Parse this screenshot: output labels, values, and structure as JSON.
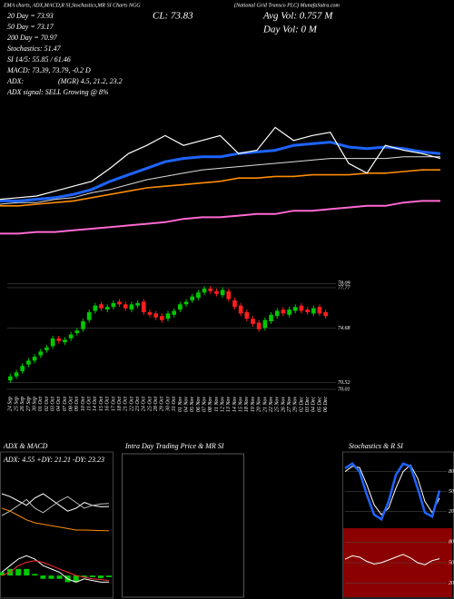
{
  "header": {
    "title": "EMA charts, ADX,MACD,R SI,Stochastics,MR SI Charts NGG",
    "company": "(National Grid Transco PLC) MunafaSutra.com",
    "close": "CL: 73.83",
    "avg_vol": "Avg Vol: 0.757 M",
    "day_vol": "Day Vol: 0 M"
  },
  "stats": [
    "20 Day = 73.93",
    "50 Day = 73.17",
    "200 Day = 70.97",
    "Stochastics: 51.47",
    "SI 14/5: 55.85 / 61.46",
    "MACD: 73.39, 73.79, -0.2 D",
    "ADX:",
    "(MGR) 4.5, 21.2, 23.2",
    "ADX  signal: SELL Growing @ 8%"
  ],
  "chart_data": [
    {
      "type": "line",
      "ylim": [
        68,
        83
      ],
      "series": [
        {
          "color": "#ff69d2",
          "width": 2,
          "values": [
            68.7,
            68.7,
            68.8,
            68.8,
            68.9,
            69.0,
            69.1,
            69.2,
            69.3,
            69.4,
            69.6,
            69.7,
            69.7,
            69.8,
            69.9,
            69.9,
            70.1,
            70.1,
            70.2,
            70.3,
            70.4,
            70.4,
            70.6,
            70.7,
            70.7
          ]
        },
        {
          "color": "#ff8c00",
          "width": 1.6,
          "values": [
            70.4,
            70.4,
            70.5,
            70.6,
            70.7,
            70.9,
            71.1,
            71.3,
            71.5,
            71.6,
            71.7,
            71.8,
            71.9,
            72.1,
            72.1,
            72.2,
            72.2,
            72.3,
            72.3,
            72.3,
            72.4,
            72.4,
            72.5,
            72.6,
            72.6
          ]
        },
        {
          "color": "#dddddd",
          "width": 1,
          "values": [
            70.5,
            70.6,
            70.6,
            70.8,
            70.9,
            71.2,
            71.4,
            71.7,
            72.0,
            72.2,
            72.4,
            72.6,
            72.7,
            72.8,
            72.9,
            73.0,
            73.1,
            73.2,
            73.3,
            73.3,
            73.3,
            73.3,
            73.4,
            73.4,
            73.4
          ]
        },
        {
          "color": "#1e64ff",
          "width": 3,
          "values": [
            70.7,
            70.7,
            70.8,
            70.9,
            71.1,
            71.4,
            71.9,
            72.3,
            72.7,
            73.1,
            73.3,
            73.4,
            73.4,
            73.6,
            73.7,
            73.8,
            74.1,
            74.2,
            74.3,
            74.0,
            73.9,
            74.0,
            73.9,
            73.7,
            73.6
          ]
        },
        {
          "color": "#ffffff",
          "width": 1.2,
          "values": [
            70.8,
            70.9,
            71.0,
            71.3,
            71.6,
            71.9,
            72.7,
            73.6,
            74.1,
            74.7,
            74.1,
            74.4,
            74.7,
            73.6,
            73.8,
            75.2,
            74.4,
            74.7,
            74.9,
            73.0,
            72.4,
            74.1,
            73.8,
            73.6,
            73.3
          ]
        }
      ]
    },
    {
      "type": "candlestick",
      "up_color": "#00c800",
      "down_color": "#ff1e1e",
      "ylim": [
        69.8,
        78.6
      ],
      "yticks": [
        78.09,
        77.77,
        74.68,
        70.52,
        70.01
      ],
      "categories": [
        "24 Sep",
        "25 Sep",
        "26 Sep",
        "27 Sep",
        "30 Sep",
        "01 Oct",
        "02 Oct",
        "03 Oct",
        "04 Oct",
        "07 Oct",
        "08 Oct",
        "09 Oct",
        "10 Oct",
        "11 Oct",
        "14 Oct",
        "15 Oct",
        "16 Oct",
        "17 Oct",
        "18 Oct",
        "21 Oct",
        "22 Oct",
        "23 Oct",
        "24 Oct",
        "25 Oct",
        "28 Oct",
        "29 Oct",
        "30 Oct",
        "31 Oct",
        "01 Nov",
        "04 Nov",
        "05 Nov",
        "06 Nov",
        "07 Nov",
        "08 Nov",
        "11 Nov",
        "12 Nov",
        "13 Nov",
        "14 Nov",
        "15 Nov",
        "18 Nov",
        "19 Nov",
        "20 Nov",
        "21 Nov",
        "22 Nov",
        "25 Nov",
        "26 Nov",
        "27 Nov",
        "29 Nov",
        "02 Dec",
        "03 Dec",
        "04 Dec",
        "05 Dec",
        "06 Dec"
      ],
      "open": [
        70.7,
        71.0,
        71.4,
        71.9,
        72.2,
        72.6,
        73.0,
        73.3,
        73.9,
        73.6,
        73.9,
        74.3,
        74.6,
        75.3,
        76.0,
        76.5,
        76.1,
        76.3,
        76.7,
        76.5,
        76.1,
        76.4,
        76.7,
        75.9,
        75.8,
        75.6,
        75.4,
        75.7,
        76.1,
        76.5,
        76.8,
        77.0,
        77.4,
        77.7,
        77.5,
        77.2,
        77.5,
        76.8,
        76.4,
        75.9,
        75.4,
        75.1,
        74.7,
        75.2,
        75.6,
        76.1,
        75.7,
        76.0,
        76.4,
        76.1,
        75.8,
        76.3,
        75.9
      ],
      "high": [
        71.2,
        71.5,
        72.0,
        72.4,
        72.7,
        73.1,
        73.4,
        74.1,
        74.1,
        74.0,
        74.4,
        74.7,
        75.4,
        76.1,
        76.6,
        76.7,
        76.5,
        76.8,
        76.9,
        76.7,
        76.7,
        76.8,
        76.9,
        76.1,
        76.0,
        75.8,
        76.0,
        76.2,
        76.7,
        76.9,
        77.3,
        77.6,
        77.9,
        77.9,
        77.7,
        77.8,
        77.7,
        77.0,
        76.6,
        76.1,
        75.6,
        75.3,
        75.5,
        75.9,
        76.2,
        76.3,
        76.3,
        76.5,
        76.6,
        76.3,
        76.4,
        76.5,
        76.1
      ],
      "low": [
        70.5,
        70.8,
        71.2,
        71.7,
        72.0,
        72.4,
        72.8,
        73.1,
        73.5,
        73.4,
        73.7,
        74.1,
        74.4,
        75.1,
        75.8,
        76.0,
        75.9,
        76.1,
        76.3,
        76.0,
        75.9,
        76.2,
        75.7,
        75.5,
        75.3,
        75.1,
        75.2,
        75.5,
        75.9,
        76.3,
        76.6,
        76.8,
        77.2,
        77.3,
        77.1,
        77.0,
        76.7,
        76.1,
        75.6,
        75.2,
        74.8,
        74.4,
        74.5,
        75.0,
        75.4,
        75.6,
        75.5,
        75.8,
        75.8,
        75.7,
        75.6,
        75.6,
        75.4
      ],
      "close": [
        71.0,
        71.3,
        71.8,
        72.2,
        72.5,
        72.9,
        73.2,
        73.9,
        73.7,
        73.8,
        74.2,
        74.5,
        75.2,
        75.9,
        76.4,
        76.2,
        76.3,
        76.6,
        76.5,
        76.2,
        76.5,
        76.6,
        75.9,
        75.7,
        75.5,
        75.3,
        75.8,
        76.0,
        76.5,
        76.7,
        77.1,
        77.4,
        77.7,
        77.5,
        77.3,
        77.6,
        76.9,
        76.3,
        75.8,
        75.4,
        75.0,
        74.6,
        75.3,
        75.7,
        76.0,
        75.8,
        76.1,
        76.3,
        76.0,
        75.9,
        76.2,
        75.8,
        75.6
      ]
    },
    {
      "type": "line",
      "title": "ADX & MACD",
      "annotation": "ADX: 4.55 +DY: 21.21 -DY: 23.23",
      "ylim": [
        0,
        50
      ],
      "series": [
        {
          "color": "#ffffff",
          "width": 1,
          "values": [
            30,
            28,
            25,
            22,
            27,
            30,
            26,
            22,
            18,
            20,
            24,
            22,
            21,
            21.21
          ]
        },
        {
          "color": "#bbbbbb",
          "width": 1,
          "values": [
            15,
            18,
            22,
            26,
            20,
            17,
            21,
            25,
            28,
            24,
            20,
            22,
            23,
            23.23
          ]
        },
        {
          "color": "#ff8c00",
          "width": 1,
          "values": [
            20,
            18,
            15,
            12,
            10,
            9,
            8,
            7,
            6,
            5,
            5,
            4.8,
            4.6,
            4.55
          ]
        }
      ]
    },
    {
      "type": "macd",
      "ylim": [
        -0.6,
        0.8
      ],
      "histogram": {
        "color": "#00c800",
        "values": [
          0.1,
          0.2,
          0.2,
          0.2,
          0.05,
          -0.1,
          -0.1,
          -0.1,
          -0.2,
          -0.2,
          -0.05,
          -0.05,
          -0.08,
          -0.05
        ]
      },
      "series": [
        {
          "color": "#ffffff",
          "width": 1,
          "values": [
            0.1,
            0.3,
            0.5,
            0.6,
            0.5,
            0.3,
            0.2,
            0.1,
            -0.1,
            -0.2,
            -0.1,
            -0.15,
            -0.2,
            -0.2
          ]
        },
        {
          "color": "#ff3030",
          "width": 1,
          "values": [
            0.0,
            0.1,
            0.3,
            0.4,
            0.45,
            0.4,
            0.3,
            0.2,
            0.1,
            0,
            -0.05,
            -0.1,
            -0.12,
            -0.15
          ]
        }
      ]
    },
    {
      "type": "line",
      "title": "Intra Day Trading Price & MR SI",
      "series": []
    },
    {
      "type": "line",
      "title": "Stochastics & R SI",
      "ylim": [
        0,
        100
      ],
      "yticks": [
        20,
        50,
        80
      ],
      "series": [
        {
          "color": "#ffffff",
          "width": 1,
          "values": [
            80,
            88,
            86,
            60,
            30,
            15,
            25,
            55,
            80,
            90,
            70,
            35,
            18,
            40
          ]
        },
        {
          "color": "#1e64ff",
          "width": 2.5,
          "values": [
            85,
            92,
            80,
            45,
            15,
            8,
            35,
            75,
            92,
            88,
            55,
            18,
            12,
            51.47
          ]
        }
      ]
    },
    {
      "type": "line",
      "background": "#8b0000",
      "ylim": [
        0,
        100
      ],
      "yticks": [
        20,
        50,
        80
      ],
      "series": [
        {
          "color": "#ffffff",
          "width": 1,
          "values": [
            55,
            60,
            58,
            52,
            48,
            50,
            54,
            58,
            62,
            57,
            50,
            47,
            53,
            55.85
          ]
        }
      ]
    }
  ]
}
